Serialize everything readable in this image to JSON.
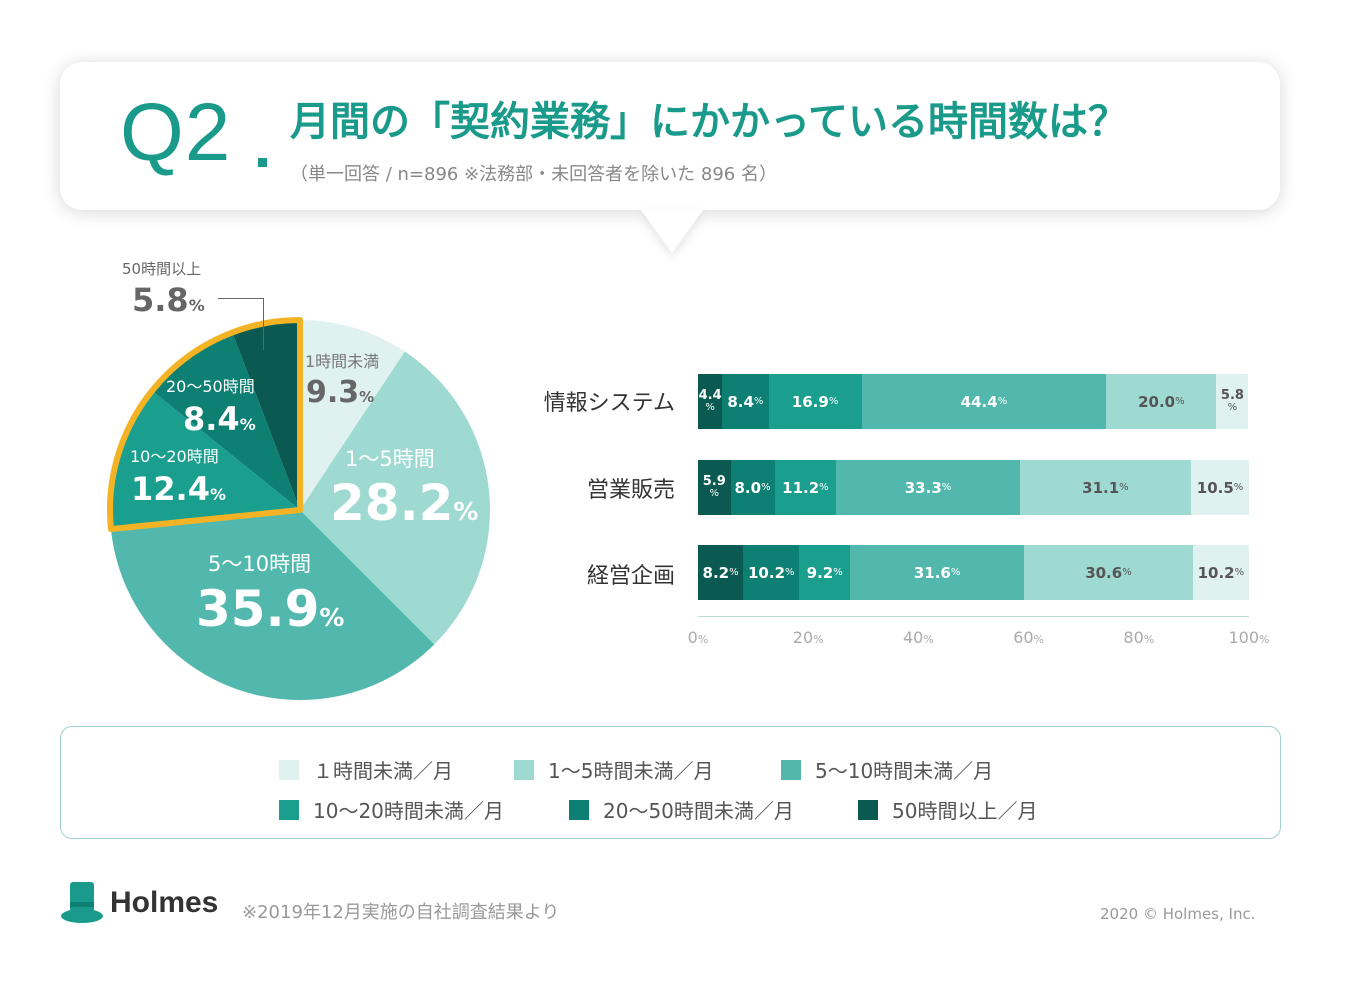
{
  "header": {
    "q_number": "Q2",
    "title": "月間の「契約業務」にかかっている時間数は？",
    "subtitle": "（単一回答 / n=896 ※法務部・未回答者を除いた 896 名）"
  },
  "pct_unit": "%",
  "colors": {
    "under1": "#dff2ef",
    "h1to5": "#9fdad2",
    "h5to10": "#52b8ad",
    "h10to20": "#1a9f8f",
    "h20to50": "#0e7f73",
    "h50plus": "#0b5a51",
    "highlight": "#f3b324",
    "accent": "#1a9a8a"
  },
  "pie": {
    "slices": [
      {
        "label": "1時間未満",
        "value": "9.3",
        "color": "#dff2ef"
      },
      {
        "label": "1〜5時間",
        "value": "28.2",
        "color": "#9fdad2"
      },
      {
        "label": "5〜10時間",
        "value": "35.9",
        "color": "#52b8ad"
      },
      {
        "label": "10〜20時間",
        "value": "12.4",
        "color": "#1a9f8f"
      },
      {
        "label": "20〜50時間",
        "value": "8.4",
        "color": "#0e7f73"
      },
      {
        "label": "50時間以上",
        "value": "5.8",
        "color": "#0b5a51"
      }
    ]
  },
  "chart_data": {
    "type": "bar",
    "orientation": "horizontal",
    "stacked": true,
    "categories": [
      "情報システム",
      "営業販売",
      "経営企画"
    ],
    "series": [
      {
        "name": "50時間以上／月",
        "values": [
          4.4,
          5.9,
          8.2
        ]
      },
      {
        "name": "20〜50時間未満／月",
        "values": [
          8.4,
          8.0,
          10.2
        ]
      },
      {
        "name": "10〜20時間未満／月",
        "values": [
          16.9,
          11.2,
          9.2
        ]
      },
      {
        "name": "5〜10時間未満／月",
        "values": [
          44.4,
          33.3,
          31.6
        ]
      },
      {
        "name": "1〜5時間未満／月",
        "values": [
          20.0,
          31.1,
          30.6
        ]
      },
      {
        "name": "１時間未満／月",
        "values": [
          5.8,
          10.5,
          10.2
        ]
      }
    ],
    "series_colors": [
      "#0b5a51",
      "#0e7f73",
      "#1a9f8f",
      "#52b8ad",
      "#9fdad2",
      "#dff2ef"
    ],
    "xlim": [
      0,
      100
    ],
    "x_ticks": [
      "0",
      "20",
      "40",
      "60",
      "80",
      "100"
    ]
  },
  "legend": [
    {
      "label": "１時間未満／月",
      "color": "#dff2ef"
    },
    {
      "label": "1〜5時間未満／月",
      "color": "#9fdad2"
    },
    {
      "label": "5〜10時間未満／月",
      "color": "#52b8ad"
    },
    {
      "label": "10〜20時間未満／月",
      "color": "#1a9f8f"
    },
    {
      "label": "20〜50時間未満／月",
      "color": "#0e7f73"
    },
    {
      "label": "50時間以上／月",
      "color": "#0b5a51"
    }
  ],
  "footer": {
    "brand": "Holmes",
    "note": "※2019年12月実施の自社調査結果より",
    "copyright": "2020 © Holmes, Inc."
  }
}
